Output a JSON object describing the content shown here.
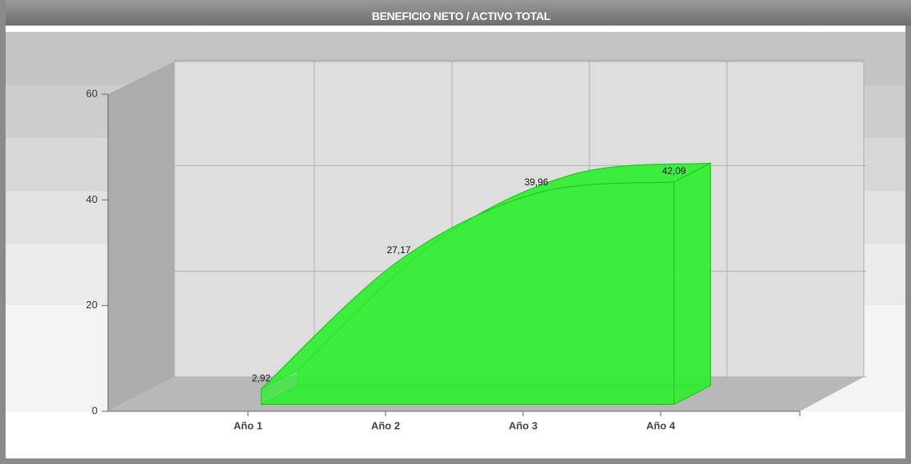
{
  "chart_data": {
    "type": "area3d",
    "title": "BENEFICIO NETO / ACTIVO TOTAL",
    "categories": [
      "Año 1",
      "Año 2",
      "Año 3",
      "Año 4"
    ],
    "values": [
      2.92,
      27.17,
      39.96,
      42.09
    ],
    "value_labels": [
      "2,92",
      "27,17",
      "39,96",
      "42,09"
    ],
    "color": "#33ee33",
    "ylim": [
      0,
      60
    ],
    "yticks": [
      0,
      20,
      40,
      60
    ],
    "grid": true
  }
}
